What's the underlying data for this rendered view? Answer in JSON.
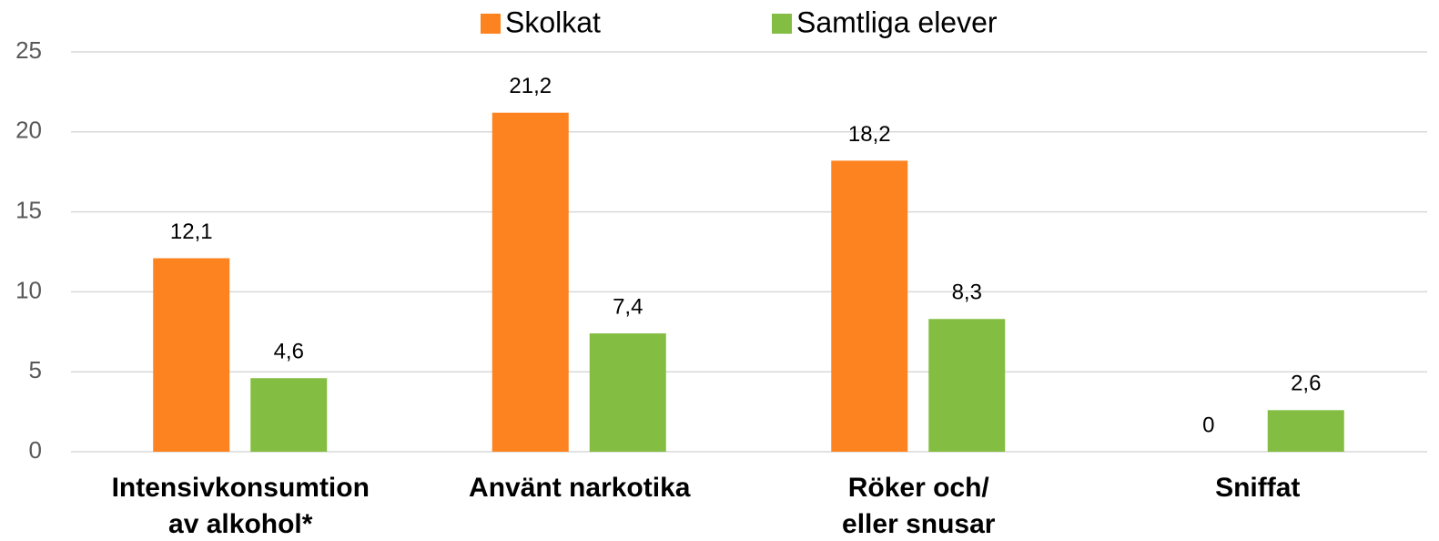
{
  "chart_data": {
    "type": "bar",
    "categories": [
      "Intensivkonsumtion\nav alkohol*",
      "Använt narkotika",
      "Röker och/\neller snusar",
      "Sniffat"
    ],
    "series": [
      {
        "name": "Skolkat",
        "color": "#fd8321",
        "values": [
          12.1,
          21.2,
          18.2,
          0
        ],
        "value_labels": [
          "12,1",
          "21,2",
          "18,2",
          "0"
        ]
      },
      {
        "name": "Samtliga elever",
        "color": "#83bd41",
        "values": [
          4.6,
          7.4,
          8.3,
          2.6
        ],
        "value_labels": [
          "4,6",
          "7,4",
          "8,3",
          "2,6"
        ]
      }
    ],
    "ylim": [
      0,
      25
    ],
    "yticks": [
      0,
      5,
      10,
      15,
      20,
      25
    ],
    "grid": true,
    "legend": "top"
  }
}
